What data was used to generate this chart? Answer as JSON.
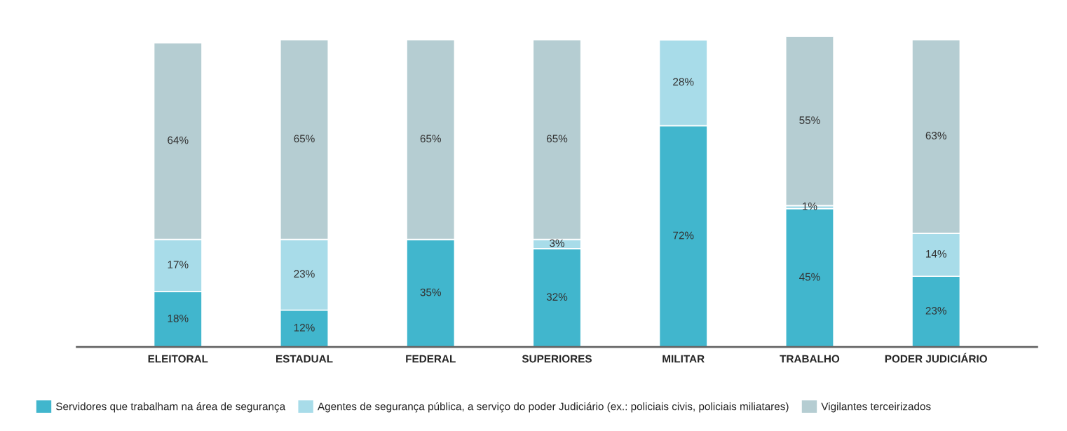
{
  "chart_data": {
    "type": "bar",
    "stacked": true,
    "legend": "bottom",
    "grid": false,
    "categories": [
      "ELEITORAL",
      "ESTADUAL",
      "FEDERAL",
      "SUPERIORES",
      "MILITAR",
      "TRABALHO",
      "PODER JUDICIÁRIO"
    ],
    "series": [
      {
        "name": "Servidores que trabalham na área de segurança",
        "color": "#41b6cd",
        "values": [
          18,
          12,
          35,
          32,
          72,
          45,
          23
        ],
        "value_labels": [
          "18%",
          "12%",
          "35%",
          "32%",
          "72%",
          "45%",
          "23%"
        ]
      },
      {
        "name": "Agentes de segurança pública, a serviço do poder Judiciário (ex.: policiais civis, policiais miliatares)",
        "color": "#a8dce9",
        "values": [
          17,
          23,
          null,
          3,
          28,
          1,
          14
        ],
        "value_labels": [
          "17%",
          "23%",
          null,
          "3%",
          "28%",
          "1%",
          "14%"
        ]
      },
      {
        "name": "Vigilantes terceirizados",
        "color": "#b5cdd2",
        "values": [
          64,
          65,
          65,
          65,
          null,
          55,
          63
        ],
        "value_labels": [
          "64%",
          "65%",
          "65%",
          "65%",
          null,
          "55%",
          "63%"
        ]
      }
    ]
  }
}
